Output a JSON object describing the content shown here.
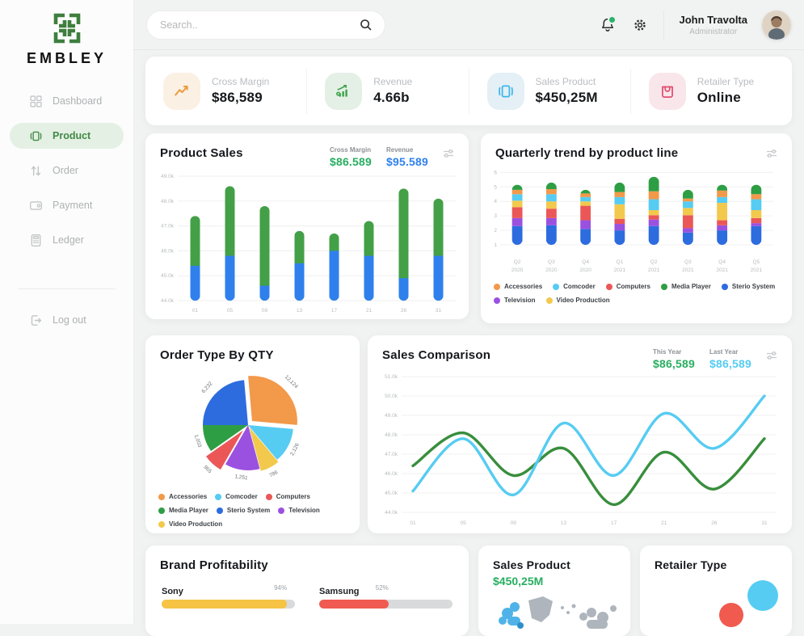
{
  "topbar": {
    "search_placeholder": "Search..",
    "user_name": "John Travolta",
    "user_role": "Administrator",
    "notification_dot_color": "#27B46A"
  },
  "sidebar": {
    "logo_text": "EMBLEY",
    "items": [
      {
        "label": "Dashboard",
        "icon": "dashboard-icon",
        "active": false
      },
      {
        "label": "Product",
        "icon": "product-icon",
        "active": true
      },
      {
        "label": "Order",
        "icon": "order-icon",
        "active": false
      },
      {
        "label": "Payment",
        "icon": "payment-icon",
        "active": false
      },
      {
        "label": "Ledger",
        "icon": "ledger-icon",
        "active": false
      }
    ],
    "logout_label": "Log out",
    "active_color": "#418A47",
    "active_bg": "#E4F0E4"
  },
  "stats": [
    {
      "label": "Cross Margin",
      "value": "$86,589",
      "icon": "trend-up-icon",
      "color": "#EC9B3B",
      "bg": "#FBF0E4"
    },
    {
      "label": "Revenue",
      "value": "4.66b",
      "icon": "revenue-icon",
      "color": "#3FA34D",
      "bg": "#E4F0E5"
    },
    {
      "label": "Sales Product",
      "value": "$450,25M",
      "icon": "sales-product-icon",
      "color": "#3EB7E8",
      "bg": "#E4EFF6"
    },
    {
      "label": "Retailer Type",
      "value": "Online",
      "icon": "bag-icon",
      "color": "#E14D70",
      "bg": "#F9E6EB"
    }
  ],
  "chart_data": {
    "product_sales": {
      "type": "bar",
      "title": "Product Sales",
      "header": [
        {
          "label": "Cross Margin",
          "value": "$86.589",
          "color": "#27AE60"
        },
        {
          "label": "Revenue",
          "value": "$95.589",
          "color": "#2F80ED"
        }
      ],
      "x": [
        "01",
        "05",
        "09",
        "13",
        "17",
        "21",
        "26",
        "31"
      ],
      "ylim": [
        44,
        49
      ],
      "yticks": [
        {
          "v": 49,
          "label": "49.0k"
        },
        {
          "v": 48,
          "label": "48.0k"
        },
        {
          "v": 47,
          "label": "47.0k"
        },
        {
          "v": 46,
          "label": "46.0k"
        },
        {
          "v": 45,
          "label": "45.0k"
        },
        {
          "v": 44,
          "label": "44.0k"
        }
      ],
      "revenue_top": [
        45.4,
        45.8,
        44.6,
        45.5,
        46.0,
        45.8,
        44.9,
        45.8
      ],
      "total_top": [
        47.4,
        48.6,
        47.8,
        46.8,
        46.7,
        47.2,
        48.5,
        48.1
      ],
      "colors": {
        "revenue": "#2F80ED",
        "margin": "#43A047"
      }
    },
    "quarterly": {
      "type": "bar-stacked",
      "title": "Quarterly trend by product line",
      "categories": [
        "Q2 2020",
        "Q3 2020",
        "Q4 2020",
        "Q1 2021",
        "Q2 2021",
        "Q3 2021",
        "Q4 2021",
        "Q5 2021"
      ],
      "base": 1,
      "ylim": [
        0.5,
        6.3
      ],
      "yticks": [
        1,
        2,
        3,
        4,
        5,
        6
      ],
      "series": [
        {
          "name": "Sterio System",
          "color": "#2D6CDF",
          "values": [
            1.3,
            1.35,
            1.1,
            1.0,
            1.3,
            0.85,
            1.0,
            1.3
          ]
        },
        {
          "name": "Television",
          "color": "#9B51E0",
          "values": [
            0.55,
            0.5,
            0.6,
            0.45,
            0.45,
            0.3,
            0.35,
            0.2
          ]
        },
        {
          "name": "Computers",
          "color": "#EB5757",
          "values": [
            0.75,
            0.65,
            1.0,
            0.35,
            0.3,
            0.9,
            0.35,
            0.35
          ]
        },
        {
          "name": "Video Production",
          "color": "#F2C94C",
          "values": [
            0.45,
            0.5,
            0.3,
            1.0,
            0.35,
            0.5,
            1.2,
            0.55
          ]
        },
        {
          "name": "Comcoder",
          "color": "#56CCF2",
          "values": [
            0.45,
            0.5,
            0.3,
            0.5,
            0.75,
            0.45,
            0.4,
            0.75
          ]
        },
        {
          "name": "Accessories",
          "color": "#F2994A",
          "values": [
            0.3,
            0.35,
            0.25,
            0.35,
            0.55,
            0.2,
            0.45,
            0.35
          ]
        },
        {
          "name": "Media Player",
          "color": "#2E9E44",
          "values": [
            0.35,
            0.45,
            0.25,
            0.65,
            1.0,
            0.6,
            0.4,
            0.65
          ]
        }
      ],
      "legend": [
        {
          "name": "Accessories",
          "color": "#F2994A"
        },
        {
          "name": "Comcoder",
          "color": "#56CCF2"
        },
        {
          "name": "Computers",
          "color": "#EB5757"
        },
        {
          "name": "Media Player",
          "color": "#2E9E44"
        },
        {
          "name": "Sterio System",
          "color": "#2D6CDF"
        },
        {
          "name": "Television",
          "color": "#9B51E0"
        },
        {
          "name": "Video Production",
          "color": "#F2C94C"
        }
      ]
    },
    "order_type": {
      "type": "pie",
      "title": "Order Type By QTY",
      "slices": [
        {
          "name": "Accessories",
          "value": "12,124",
          "color": "#F2994A",
          "start": 95,
          "sweep": 100,
          "explode": 7
        },
        {
          "name": "Comcoder",
          "value": "2,126",
          "color": "#56CCF2",
          "start": -5,
          "sweep": 45,
          "explode": 0
        },
        {
          "name": "Video Production",
          "value": "786",
          "color": "#F2C94C",
          "start": -50,
          "sweep": 25,
          "explode": 3
        },
        {
          "name": "Television",
          "value": "1,251",
          "color": "#9B51E0",
          "start": -75,
          "sweep": 45,
          "explode": 0
        },
        {
          "name": "Computers",
          "value": "965",
          "color": "#EB5757",
          "start": -120,
          "sweep": 25,
          "explode": 9
        },
        {
          "name": "Media Player",
          "value": "1,003",
          "color": "#2E9E44",
          "start": -145,
          "sweep": 35,
          "explode": 0
        },
        {
          "name": "Sterio System",
          "value": "6,232",
          "color": "#2D6CDF",
          "start": -180,
          "sweep": 85,
          "explode": 0
        }
      ],
      "legend": [
        {
          "name": "Accessories",
          "color": "#F2994A"
        },
        {
          "name": "Comcoder",
          "color": "#56CCF2"
        },
        {
          "name": "Computers",
          "color": "#EB5757"
        },
        {
          "name": "Media Player",
          "color": "#2E9E44"
        },
        {
          "name": "Sterio System",
          "color": "#2D6CDF"
        },
        {
          "name": "Television",
          "color": "#9B51E0"
        },
        {
          "name": "Video Production",
          "color": "#F2C94C"
        }
      ]
    },
    "sales_comparison": {
      "type": "line",
      "title": "Sales Comparison",
      "header": [
        {
          "label": "This Year",
          "value": "$86,589",
          "color": "#27AE60"
        },
        {
          "label": "Last Year",
          "value": "$86,589",
          "color": "#56CCF2"
        }
      ],
      "x": [
        "01",
        "05",
        "09",
        "13",
        "17",
        "21",
        "26",
        "31"
      ],
      "ylim": [
        44,
        51
      ],
      "yticks": [
        {
          "v": 51,
          "label": "51.0k"
        },
        {
          "v": 50,
          "label": "50.0k"
        },
        {
          "v": 49,
          "label": "49.0k"
        },
        {
          "v": 48,
          "label": "48.0k"
        },
        {
          "v": 47,
          "label": "47.0k"
        },
        {
          "v": 46,
          "label": "46.0k"
        },
        {
          "v": 45,
          "label": "45.0k"
        },
        {
          "v": 44,
          "label": "44.0k"
        }
      ],
      "series": [
        {
          "name": "This Year",
          "color": "#388E3C",
          "values": [
            46.4,
            48.1,
            45.9,
            47.3,
            44.4,
            47.1,
            45.2,
            47.8
          ]
        },
        {
          "name": "Last Year",
          "color": "#56CCF2",
          "values": [
            45.1,
            47.8,
            44.9,
            48.6,
            45.9,
            49.1,
            47.3,
            50.0
          ]
        }
      ]
    },
    "brand_profitability": {
      "type": "hbar",
      "title": "Brand Profitability",
      "items": [
        {
          "name": "Sony",
          "pct": 94,
          "pct_label": "94%",
          "color": "#F6C344"
        },
        {
          "name": "Samsung",
          "pct": 52,
          "pct_label": "52%",
          "color": "#F05A50"
        }
      ],
      "track_color": "#d8dadb"
    },
    "sales_product": {
      "type": "map",
      "title": "Sales Product",
      "value": "$450,25M",
      "value_color": "#27AE60",
      "land_color": "#AEB5BC",
      "highlight_color": "#4FB3E8"
    },
    "retailer_type": {
      "type": "bubble",
      "title": "Retailer Type",
      "bubbles": [
        {
          "color": "#56CCF2",
          "r": 19
        },
        {
          "color": "#F05A4F",
          "r": 15
        }
      ]
    }
  }
}
